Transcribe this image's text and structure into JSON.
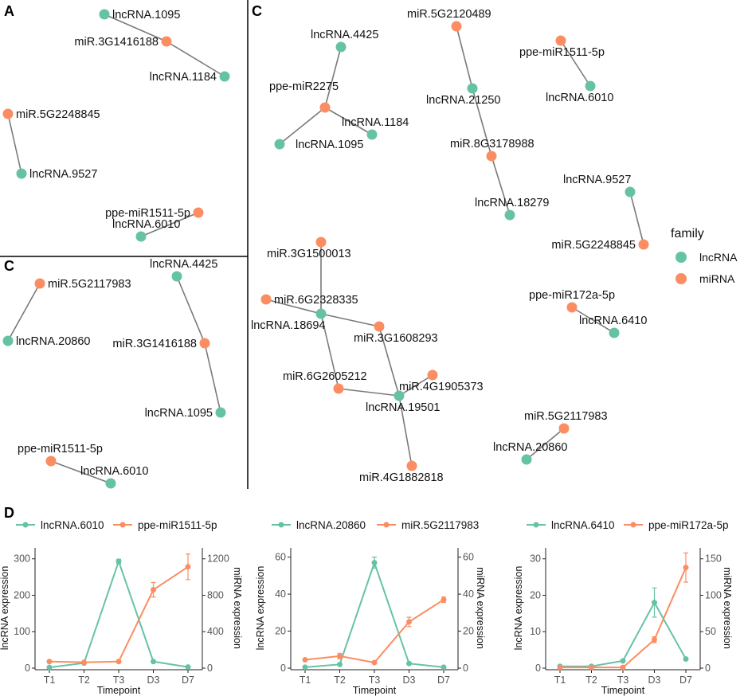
{
  "colors": {
    "lncRNA": "#66C2A5",
    "miRNA": "#FC8D62",
    "edge": "#7a7a7a"
  },
  "panels": {
    "A": {
      "label": "A"
    },
    "C_small": {
      "label": "C"
    },
    "C_big": {
      "label": "C"
    },
    "D": {
      "label": "D"
    }
  },
  "networks": [
    {
      "id": "A",
      "nodes": [
        {
          "id": "lncRNA.1095",
          "label": "lncRNA.1095",
          "family": "lncRNA"
        },
        {
          "id": "miR.3G1416188",
          "label": "miR.3G1416188",
          "family": "miRNA"
        },
        {
          "id": "lncRNA.1184",
          "label": "lncRNA.1184",
          "family": "lncRNA"
        },
        {
          "id": "miR.5G2248845",
          "label": "miR.5G2248845",
          "family": "miRNA"
        },
        {
          "id": "lncRNA.9527",
          "label": "lncRNA.9527",
          "family": "lncRNA"
        },
        {
          "id": "ppe-miR1511-5p",
          "label": "ppe-miR1511-5p",
          "family": "miRNA"
        },
        {
          "id": "lncRNA.6010",
          "label": "lncRNA.6010",
          "family": "lncRNA"
        }
      ],
      "edges": [
        [
          "lncRNA.1095",
          "miR.3G1416188"
        ],
        [
          "miR.3G1416188",
          "lncRNA.1184"
        ],
        [
          "miR.5G2248845",
          "lncRNA.9527"
        ],
        [
          "ppe-miR1511-5p",
          "lncRNA.6010"
        ]
      ]
    },
    {
      "id": "Csmall",
      "nodes": [
        {
          "id": "miR.5G2117983",
          "label": "miR.5G2117983",
          "family": "miRNA"
        },
        {
          "id": "lncRNA.20860",
          "label": "lncRNA.20860",
          "family": "lncRNA"
        },
        {
          "id": "lncRNA.4425",
          "label": "lncRNA.4425",
          "family": "lncRNA"
        },
        {
          "id": "miR.3G1416188",
          "label": "miR.3G1416188",
          "family": "miRNA"
        },
        {
          "id": "lncRNA.1095",
          "label": "lncRNA.1095",
          "family": "lncRNA"
        },
        {
          "id": "ppe-miR1511-5p",
          "label": "ppe-miR1511-5p",
          "family": "miRNA"
        },
        {
          "id": "lncRNA.6010",
          "label": "lncRNA.6010",
          "family": "lncRNA"
        }
      ],
      "edges": [
        [
          "miR.5G2117983",
          "lncRNA.20860"
        ],
        [
          "lncRNA.4425",
          "miR.3G1416188"
        ],
        [
          "miR.3G1416188",
          "lncRNA.1095"
        ],
        [
          "ppe-miR1511-5p",
          "lncRNA.6010"
        ]
      ]
    },
    {
      "id": "Cbig",
      "nodes": [
        {
          "id": "lncRNA.4425",
          "label": "lncRNA.4425",
          "family": "lncRNA"
        },
        {
          "id": "ppe-miR2275",
          "label": "ppe-miR2275",
          "family": "miRNA"
        },
        {
          "id": "lncRNA.1184",
          "label": "lncRNA.1184",
          "family": "lncRNA"
        },
        {
          "id": "lncRNA.1095",
          "label": "lncRNA.1095",
          "family": "lncRNA"
        },
        {
          "id": "miR.5G2120489",
          "label": "miR.5G2120489",
          "family": "miRNA"
        },
        {
          "id": "lncRNA.21250",
          "label": "lncRNA.21250",
          "family": "lncRNA"
        },
        {
          "id": "miR.8G3178988",
          "label": "miR.8G3178988",
          "family": "miRNA"
        },
        {
          "id": "lncRNA.18279",
          "label": "lncRNA.18279",
          "family": "lncRNA"
        },
        {
          "id": "ppe-miR1511-5p",
          "label": "ppe-miR1511-5p",
          "family": "miRNA"
        },
        {
          "id": "lncRNA.6010",
          "label": "lncRNA.6010",
          "family": "lncRNA"
        },
        {
          "id": "lncRNA.9527",
          "label": "lncRNA.9527",
          "family": "lncRNA"
        },
        {
          "id": "miR.5G2248845",
          "label": "miR.5G2248845",
          "family": "miRNA"
        },
        {
          "id": "miR.3G1500013",
          "label": "miR.3G1500013",
          "family": "miRNA"
        },
        {
          "id": "miR.6G2328335",
          "label": "miR.6G2328335",
          "family": "miRNA"
        },
        {
          "id": "lncRNA.18694",
          "label": "lncRNA.18694",
          "family": "lncRNA"
        },
        {
          "id": "miR.3G1608293",
          "label": "miR.3G1608293",
          "family": "miRNA"
        },
        {
          "id": "miR.6G2605212",
          "label": "miR.6G2605212",
          "family": "miRNA"
        },
        {
          "id": "miR.4G1905373",
          "label": "miR.4G1905373",
          "family": "miRNA"
        },
        {
          "id": "lncRNA.19501",
          "label": "lncRNA.19501",
          "family": "lncRNA"
        },
        {
          "id": "miR.4G1882818",
          "label": "miR.4G1882818",
          "family": "miRNA"
        },
        {
          "id": "ppe-miR172a-5p",
          "label": "ppe-miR172a-5p",
          "family": "miRNA"
        },
        {
          "id": "lncRNA.6410",
          "label": "lncRNA.6410",
          "family": "lncRNA"
        },
        {
          "id": "miR.5G2117983",
          "label": "miR.5G2117983",
          "family": "miRNA"
        },
        {
          "id": "lncRNA.20860",
          "label": "lncRNA.20860",
          "family": "lncRNA"
        }
      ],
      "edges": [
        [
          "lncRNA.4425",
          "ppe-miR2275"
        ],
        [
          "ppe-miR2275",
          "lncRNA.1184"
        ],
        [
          "ppe-miR2275",
          "lncRNA.1095"
        ],
        [
          "miR.5G2120489",
          "lncRNA.21250"
        ],
        [
          "lncRNA.21250",
          "miR.8G3178988"
        ],
        [
          "miR.8G3178988",
          "lncRNA.18279"
        ],
        [
          "ppe-miR1511-5p",
          "lncRNA.6010"
        ],
        [
          "lncRNA.9527",
          "miR.5G2248845"
        ],
        [
          "miR.3G1500013",
          "lncRNA.18694"
        ],
        [
          "miR.6G2328335",
          "lncRNA.18694"
        ],
        [
          "lncRNA.18694",
          "miR.3G1608293"
        ],
        [
          "lncRNA.18694",
          "miR.6G2605212"
        ],
        [
          "miR.3G1608293",
          "lncRNA.19501"
        ],
        [
          "miR.6G2605212",
          "lncRNA.19501"
        ],
        [
          "miR.4G1905373",
          "lncRNA.19501"
        ],
        [
          "lncRNA.19501",
          "miR.4G1882818"
        ],
        [
          "ppe-miR172a-5p",
          "lncRNA.6410"
        ],
        [
          "miR.5G2117983",
          "lncRNA.20860"
        ]
      ]
    }
  ],
  "legend": {
    "title": "family",
    "items": [
      "lncRNA",
      "miRNA"
    ]
  },
  "chart_data": [
    {
      "type": "line",
      "title": "",
      "categories": [
        "T1",
        "T2",
        "T3",
        "D3",
        "D7"
      ],
      "xlabel": "Timepoint",
      "ylabel": "lncRNA expression",
      "y2label": "miRNA expression",
      "ylim": [
        0,
        330
      ],
      "yticks": [
        0,
        100,
        200,
        300
      ],
      "y2lim": [
        0,
        1320
      ],
      "y2ticks": [
        0,
        400,
        800,
        1200
      ],
      "series": [
        {
          "name": "lncRNA.6010",
          "axis": "left",
          "family": "lncRNA",
          "values": [
            2,
            14,
            293,
            18,
            3
          ],
          "err": [
            0,
            0,
            6,
            0,
            0
          ]
        },
        {
          "name": "ppe-miR1511-5p",
          "axis": "right",
          "family": "miRNA",
          "values": [
            72,
            64,
            72,
            860,
            1112
          ],
          "err": [
            0,
            0,
            0,
            80,
            140
          ]
        }
      ]
    },
    {
      "type": "line",
      "title": "",
      "categories": [
        "T1",
        "T2",
        "T3",
        "D3",
        "D7"
      ],
      "xlabel": "Timepoint",
      "ylabel": "lncRNA expression",
      "y2label": "miRNA expression",
      "ylim": [
        0,
        65
      ],
      "yticks": [
        0,
        20,
        40,
        60
      ],
      "y2lim": [
        0,
        65
      ],
      "y2ticks": [
        0,
        20,
        40,
        60
      ],
      "series": [
        {
          "name": "lncRNA.20860",
          "axis": "left",
          "family": "lncRNA",
          "values": [
            0.5,
            2,
            57,
            2.5,
            0.5
          ],
          "err": [
            0,
            0,
            3,
            0,
            0
          ]
        },
        {
          "name": "miR.5G2117983",
          "axis": "right",
          "family": "miRNA",
          "values": [
            4.5,
            6.5,
            3,
            25,
            37
          ],
          "err": [
            0,
            1.5,
            0,
            2.5,
            1.5
          ]
        }
      ]
    },
    {
      "type": "line",
      "title": "",
      "categories": [
        "T1",
        "T2",
        "T3",
        "D3",
        "D7"
      ],
      "xlabel": "Timepoint",
      "ylabel": "lncRNA expression",
      "y2label": "miRNA expression",
      "ylim": [
        0,
        33
      ],
      "yticks": [
        0,
        10,
        20,
        30
      ],
      "y2lim": [
        0,
        165
      ],
      "y2ticks": [
        0,
        50,
        100,
        150
      ],
      "series": [
        {
          "name": "lncRNA.6410",
          "axis": "left",
          "family": "lncRNA",
          "values": [
            0.5,
            0.5,
            2,
            18,
            2.5
          ],
          "err": [
            0,
            0,
            0,
            4,
            0
          ]
        },
        {
          "name": "ppe-miR172a-5p",
          "axis": "right",
          "family": "miRNA",
          "values": [
            1,
            1,
            1,
            39,
            138
          ],
          "err": [
            0,
            0,
            0,
            4,
            20
          ]
        }
      ]
    }
  ]
}
